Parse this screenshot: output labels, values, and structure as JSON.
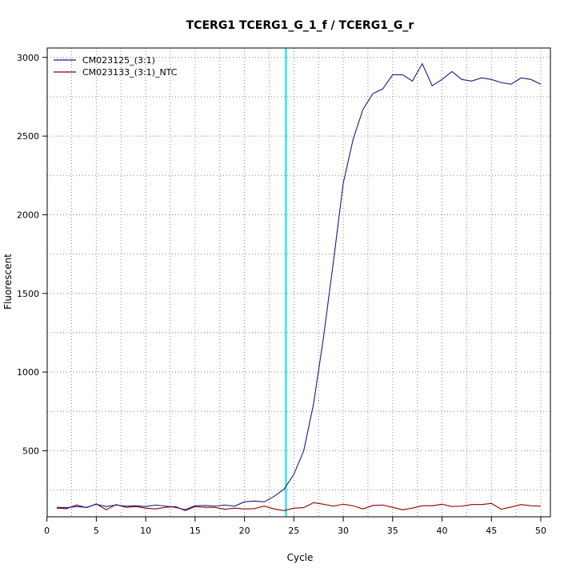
{
  "chart_data": {
    "type": "line",
    "title": "TCERG1  TCERG1_G_1_f / TCERG1_G_r",
    "xlabel": "Cycle",
    "ylabel": "Fluorescent",
    "xlim": [
      1,
      50
    ],
    "ylim": [
      80,
      3060
    ],
    "x_ticks": [
      0,
      5,
      10,
      15,
      20,
      25,
      30,
      35,
      40,
      45,
      50
    ],
    "y_ticks": [
      500,
      1000,
      1500,
      2000,
      2500,
      3000
    ],
    "grid": true,
    "legend_position": "top-left",
    "threshold_cycle": 24.2,
    "threshold_color": "#00e5ee",
    "x": [
      1,
      2,
      3,
      4,
      5,
      6,
      7,
      8,
      9,
      10,
      11,
      12,
      13,
      14,
      15,
      16,
      17,
      18,
      19,
      20,
      21,
      22,
      23,
      24,
      25,
      26,
      27,
      28,
      29,
      30,
      31,
      32,
      33,
      34,
      35,
      36,
      37,
      38,
      39,
      40,
      41,
      42,
      43,
      44,
      45,
      46,
      47,
      48,
      49,
      50
    ],
    "series": [
      {
        "name": "CM023125_(3:1)",
        "color": "#1a1a80",
        "values": [
          140,
          138,
          145,
          140,
          160,
          145,
          155,
          148,
          150,
          145,
          155,
          148,
          140,
          125,
          150,
          152,
          148,
          155,
          148,
          175,
          180,
          175,
          210,
          255,
          350,
          500,
          800,
          1220,
          1700,
          2200,
          2480,
          2670,
          2770,
          2800,
          2890,
          2890,
          2850,
          2960,
          2820,
          2860,
          2910,
          2860,
          2850,
          2870,
          2860,
          2840,
          2830,
          2870,
          2860,
          2830
        ]
      },
      {
        "name": "CM023133_(3:1)_NTC",
        "color": "#8b0000",
        "values": [
          135,
          132,
          155,
          138,
          162,
          125,
          158,
          140,
          145,
          135,
          130,
          140,
          145,
          120,
          145,
          140,
          140,
          128,
          135,
          130,
          132,
          148,
          130,
          120,
          135,
          138,
          170,
          160,
          148,
          160,
          150,
          130,
          152,
          155,
          140,
          125,
          135,
          150,
          150,
          160,
          145,
          148,
          158,
          158,
          165,
          128,
          142,
          158,
          150,
          148
        ]
      }
    ]
  }
}
